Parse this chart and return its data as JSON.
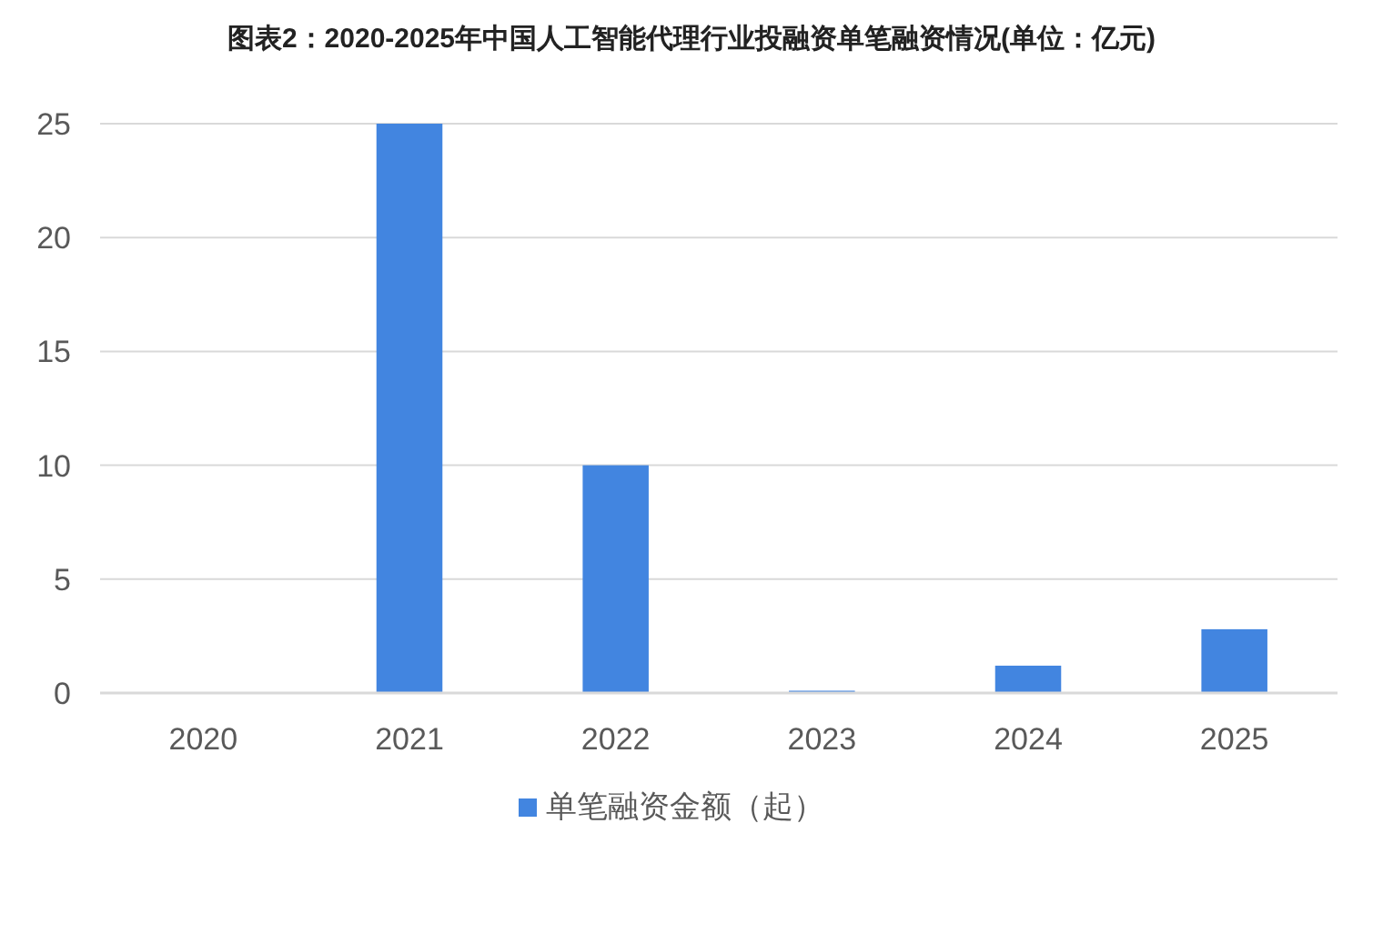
{
  "chart_data": {
    "type": "bar",
    "title": "图表2：2020-2025年中国人工智能代理行业投融资单笔融资情况(单位：亿元)",
    "categories": [
      "2020",
      "2021",
      "2022",
      "2023",
      "2024",
      "2025"
    ],
    "series": [
      {
        "name": "单笔融资金额（起）",
        "color": "#4285e0",
        "values": [
          0,
          25,
          10,
          0.1,
          1.2,
          2.8
        ]
      }
    ],
    "ylim": [
      0,
      25
    ],
    "yticks": [
      0,
      5,
      10,
      15,
      20,
      25
    ],
    "grid": "y",
    "legend": "bottom"
  }
}
